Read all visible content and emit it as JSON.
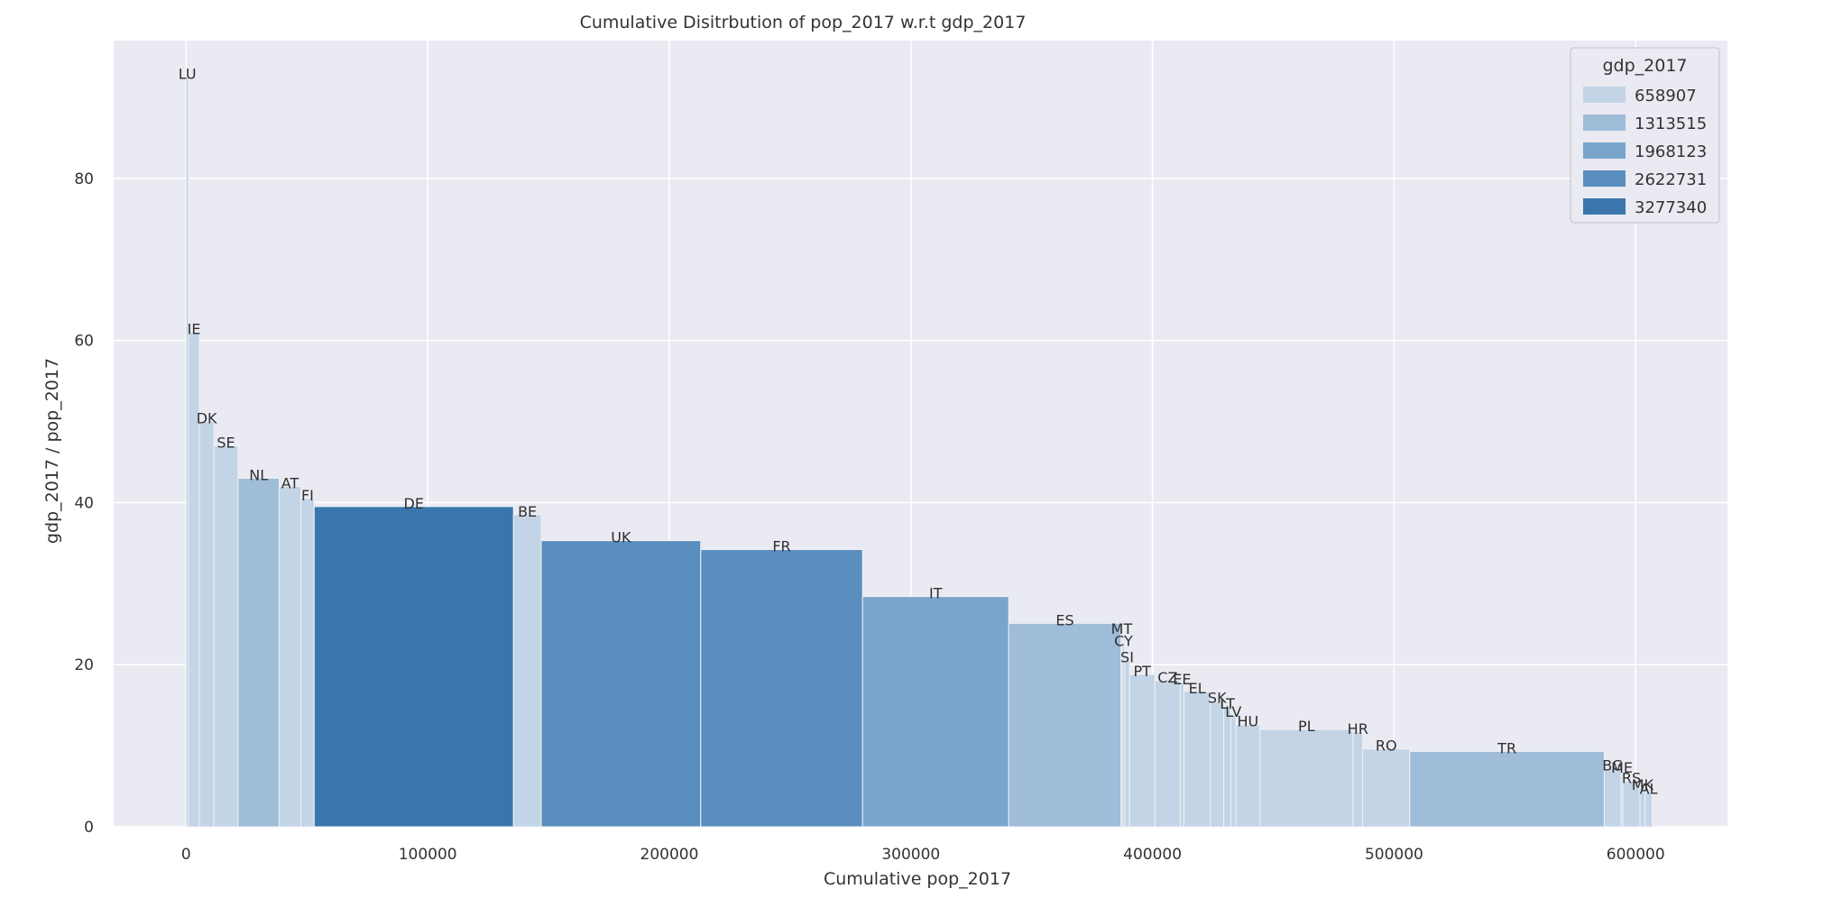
{
  "chart_data": {
    "type": "bar",
    "subtype": "variable-width-cumulative",
    "title": "Cumulative Disitrbution of pop_2017 w.r.t gdp_2017",
    "xlabel": "Cumulative pop_2017",
    "ylabel": "gdp_2017 / pop_2017",
    "xlim": [
      -30000,
      638000
    ],
    "ylim": [
      0,
      97
    ],
    "xticks": [
      0,
      100000,
      200000,
      300000,
      400000,
      500000,
      600000
    ],
    "yticks": [
      0,
      20,
      40,
      60,
      80
    ],
    "grid": true,
    "legend": {
      "title": "gdp_2017",
      "position": "top-right",
      "entries": [
        {
          "label": "658907",
          "color": "#c3d4e6"
        },
        {
          "label": "1313515",
          "color": "#9fbcd9"
        },
        {
          "label": "1968123",
          "color": "#7aa5cb"
        },
        {
          "label": "2622731",
          "color": "#5a8ebf"
        },
        {
          "label": "3277340",
          "color": "#3a76ad"
        }
      ]
    },
    "bars": [
      {
        "label": "LU",
        "x0": 0,
        "x1": 1000,
        "value": 92.5,
        "bin": 0
      },
      {
        "label": "IE",
        "x0": 1000,
        "x1": 5500,
        "value": 61,
        "bin": 0
      },
      {
        "label": "DK",
        "x0": 5500,
        "x1": 11500,
        "value": 50,
        "bin": 0
      },
      {
        "label": "SE",
        "x0": 11500,
        "x1": 21500,
        "value": 47,
        "bin": 0
      },
      {
        "label": "NL",
        "x0": 21500,
        "x1": 38500,
        "value": 43,
        "bin": 1
      },
      {
        "label": "AT",
        "x0": 38500,
        "x1": 47500,
        "value": 42,
        "bin": 0
      },
      {
        "label": "FI",
        "x0": 47500,
        "x1": 53000,
        "value": 40.5,
        "bin": 0
      },
      {
        "label": "DE",
        "x0": 53000,
        "x1": 135500,
        "value": 39.5,
        "bin": 4
      },
      {
        "label": "BE",
        "x0": 135500,
        "x1": 147000,
        "value": 38.5,
        "bin": 0
      },
      {
        "label": "UK",
        "x0": 147000,
        "x1": 213000,
        "value": 35.3,
        "bin": 3
      },
      {
        "label": "FR",
        "x0": 213000,
        "x1": 280000,
        "value": 34.2,
        "bin": 3
      },
      {
        "label": "IT",
        "x0": 280000,
        "x1": 340500,
        "value": 28.4,
        "bin": 2
      },
      {
        "label": "ES",
        "x0": 340500,
        "x1": 387000,
        "value": 25.1,
        "bin": 1
      },
      {
        "label": "MT",
        "x0": 387000,
        "x1": 387500,
        "value": 24,
        "bin": 0
      },
      {
        "label": "CY",
        "x0": 387500,
        "x1": 388500,
        "value": 22.5,
        "bin": 0
      },
      {
        "label": "SI",
        "x0": 388500,
        "x1": 390500,
        "value": 20.5,
        "bin": 0
      },
      {
        "label": "PT",
        "x0": 390500,
        "x1": 401000,
        "value": 18.8,
        "bin": 0
      },
      {
        "label": "CZ",
        "x0": 401000,
        "x1": 411500,
        "value": 18,
        "bin": 0
      },
      {
        "label": "EE",
        "x0": 411500,
        "x1": 413000,
        "value": 17.8,
        "bin": 0
      },
      {
        "label": "EL",
        "x0": 413000,
        "x1": 424000,
        "value": 16.7,
        "bin": 0
      },
      {
        "label": "SK",
        "x0": 424000,
        "x1": 429500,
        "value": 15.5,
        "bin": 0
      },
      {
        "label": "LT",
        "x0": 429500,
        "x1": 432500,
        "value": 14.8,
        "bin": 0
      },
      {
        "label": "LV",
        "x0": 432500,
        "x1": 434500,
        "value": 13.8,
        "bin": 0
      },
      {
        "label": "HU",
        "x0": 434500,
        "x1": 444500,
        "value": 12.6,
        "bin": 0
      },
      {
        "label": "PL",
        "x0": 444500,
        "x1": 483000,
        "value": 12,
        "bin": 0
      },
      {
        "label": "HR",
        "x0": 483000,
        "x1": 487000,
        "value": 11.7,
        "bin": 0
      },
      {
        "label": "RO",
        "x0": 487000,
        "x1": 506500,
        "value": 9.6,
        "bin": 0
      },
      {
        "label": "TR",
        "x0": 506500,
        "x1": 587000,
        "value": 9.3,
        "bin": 1
      },
      {
        "label": "BG",
        "x0": 587000,
        "x1": 594000,
        "value": 7.2,
        "bin": 0
      },
      {
        "label": "ME",
        "x0": 594000,
        "x1": 594700,
        "value": 6.9,
        "bin": 0
      },
      {
        "label": "RS",
        "x0": 594700,
        "x1": 601800,
        "value": 5.6,
        "bin": 0
      },
      {
        "label": "MK",
        "x0": 601800,
        "x1": 603900,
        "value": 4.8,
        "bin": 0
      },
      {
        "label": "AL",
        "x0": 603900,
        "x1": 606800,
        "value": 4.3,
        "bin": 0
      }
    ]
  }
}
